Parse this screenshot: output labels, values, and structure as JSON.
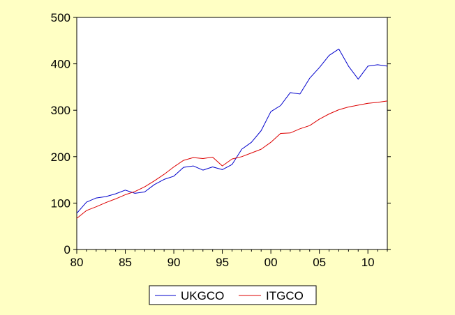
{
  "chart_data": {
    "type": "line",
    "title": "",
    "xlabel": "",
    "ylabel": "",
    "xlim": [
      1980,
      2012
    ],
    "ylim": [
      0,
      500
    ],
    "x_ticks": [
      1980,
      1985,
      1990,
      1995,
      2000,
      2005,
      2010
    ],
    "x_tick_labels": [
      "80",
      "85",
      "90",
      "95",
      "00",
      "05",
      "10"
    ],
    "y_ticks": [
      0,
      100,
      200,
      300,
      400,
      500
    ],
    "y_tick_labels": [
      "0",
      "100",
      "200",
      "300",
      "400",
      "500"
    ],
    "grid": false,
    "legend_position": "bottom-center",
    "x": [
      1980,
      1981,
      1982,
      1983,
      1984,
      1985,
      1986,
      1987,
      1988,
      1989,
      1990,
      1991,
      1992,
      1993,
      1994,
      1995,
      1996,
      1997,
      1998,
      1999,
      2000,
      2001,
      2002,
      2003,
      2004,
      2005,
      2006,
      2007,
      2008,
      2009,
      2010,
      2011,
      2012
    ],
    "series": [
      {
        "name": "UKGCO",
        "color": "#0000CC",
        "values": [
          78,
          102,
          111,
          114,
          120,
          128,
          121,
          124,
          140,
          151,
          158,
          177,
          180,
          171,
          178,
          172,
          183,
          216,
          231,
          256,
          297,
          310,
          338,
          335,
          369,
          392,
          418,
          432,
          395,
          367,
          395,
          398,
          395
        ]
      },
      {
        "name": "ITGCO",
        "color": "#DD0000",
        "values": [
          67,
          84,
          92,
          101,
          109,
          118,
          125,
          135,
          148,
          162,
          178,
          192,
          198,
          196,
          199,
          180,
          195,
          200,
          208,
          216,
          231,
          250,
          251,
          260,
          267,
          281,
          292,
          301,
          307,
          311,
          315,
          317,
          320
        ]
      }
    ]
  }
}
